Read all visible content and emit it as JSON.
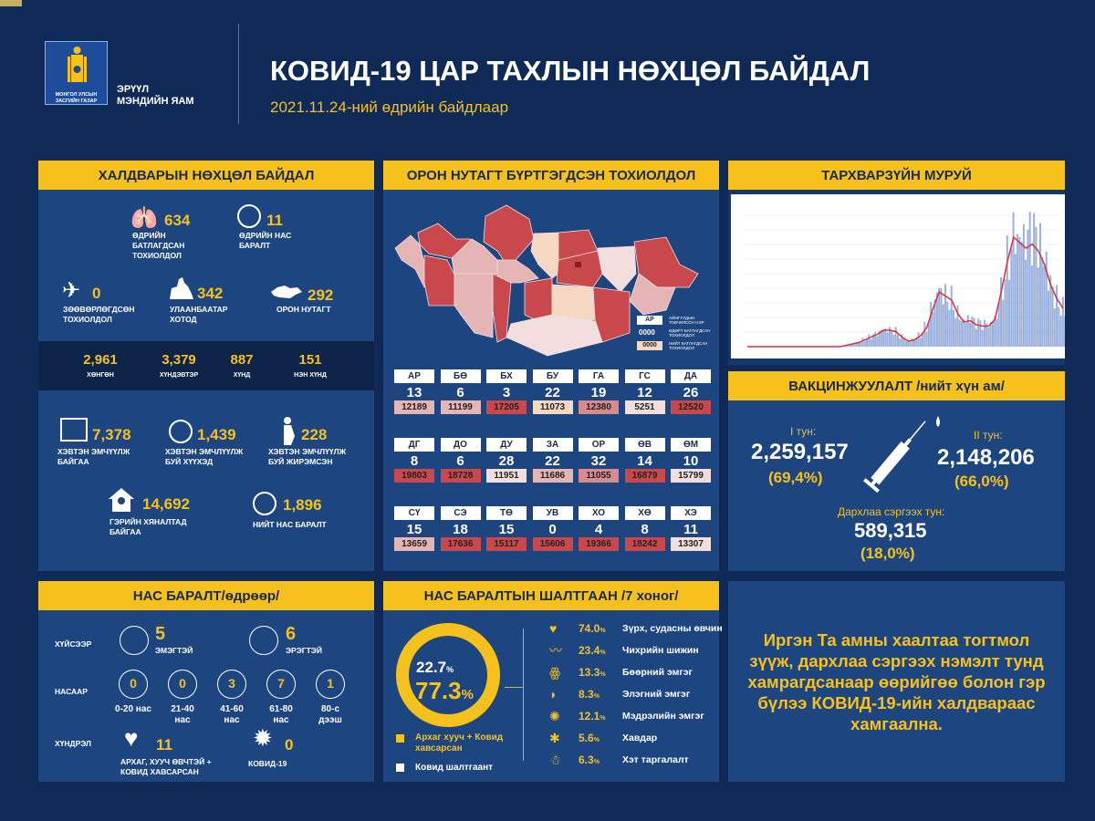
{
  "header": {
    "logo_text": "МОНГОЛ УЛСЫН ЗАСГИЙН ГАЗАР",
    "ministry": "ЭРҮҮЛ\nМЭНДИЙН ЯАМ",
    "title": "КОВИД-19 ЦАР ТАХЛЫН НӨХЦӨЛ БАЙДАЛ",
    "subtitle": "2021.11.24-ний өдрийн байдлаар"
  },
  "infection": {
    "title": "ХАЛДВАРЫН НӨХЦӨЛ БАЙДАЛ",
    "daily_cases": {
      "value": "634",
      "label": "ӨДРИЙН\nБАТЛАГДСАН\nТОХИОЛДОЛ",
      "icon": "lungs-icon"
    },
    "daily_deaths": {
      "value": "11",
      "label": "ӨДРИЙН НАС\nБАРАЛТ",
      "icon": "person-minus-icon"
    },
    "imported": {
      "value": "0",
      "label": "ЗӨӨВӨРЛӨГДСӨН\nТОХИОЛДОЛ",
      "icon": "airplane-icon"
    },
    "ulaanbaatar": {
      "value": "342",
      "label": "УЛААНБААТАР\nХОТОД",
      "icon": "statue-icon"
    },
    "rural": {
      "value": "292",
      "label": "ОРОН НУТАГТ",
      "icon": "mongolia-map-icon"
    },
    "severity": [
      {
        "value": "2,961",
        "label": "ХӨНГӨН"
      },
      {
        "value": "3,379",
        "label": "ХҮНДЭВТЭР"
      },
      {
        "value": "887",
        "label": "ХҮНД"
      },
      {
        "value": "151",
        "label": "НЭН ХҮНД"
      }
    ],
    "hospitalized": {
      "value": "7,378",
      "label": "ХЭВТЭН ЭМЧҮҮЛЖ\nБАЙГАА",
      "icon": "hospital-icon"
    },
    "children": {
      "value": "1,439",
      "label": "ХЭВТЭН ЭМЧЛҮҮЛЖ\nБУЙ ХҮҮХЭД",
      "icon": "baby-icon"
    },
    "pregnant": {
      "value": "228",
      "label": "ХЭВТЭН ЭМЧЛҮҮЛЖ\nБУЙ ЖИРЭМСЭН",
      "icon": "pregnant-icon"
    },
    "home": {
      "value": "14,692",
      "label": "ГЭРИЙН ХЯНАЛТАД\nБАЙГАА",
      "icon": "home-icon"
    },
    "total_deaths": {
      "value": "1,896",
      "label": "НИЙТ НАС БАРАЛТ",
      "icon": "person-minus-icon"
    }
  },
  "regional": {
    "title": "ОРОН НУТАГТ БҮРТГЭГДСЭН ТОХИОЛДОЛ",
    "legend": [
      {
        "sample": "АР",
        "label": "АЙМГУУДЫН ТОВЧИЛСОН НЭР"
      },
      {
        "sample": "0000",
        "label": "ӨДӨРТ БАТЛАГДСАН ТОХИОЛДОЛ"
      },
      {
        "sample": "0000",
        "label": "НИЙТ БАТЛАГДСАН ТОХИОЛДОЛ"
      }
    ],
    "colors": {
      "dark": "#c8484b",
      "medium": "#d68c8e",
      "light": "#e5b4b5",
      "pale": "#f3dede",
      "peach": "#f5d8c2"
    },
    "provinces": [
      {
        "code": "АР",
        "daily": "13",
        "total": "12189",
        "shade": "light"
      },
      {
        "code": "БӨ",
        "daily": "6",
        "total": "11199",
        "shade": "light"
      },
      {
        "code": "БХ",
        "daily": "3",
        "total": "17205",
        "shade": "dark"
      },
      {
        "code": "БУ",
        "daily": "22",
        "total": "11073",
        "shade": "peach"
      },
      {
        "code": "ГА",
        "daily": "19",
        "total": "12380",
        "shade": "medium"
      },
      {
        "code": "ГС",
        "daily": "12",
        "total": "5251",
        "shade": "pale"
      },
      {
        "code": "ДА",
        "daily": "26",
        "total": "12520",
        "shade": "dark"
      },
      {
        "code": "ДГ",
        "daily": "8",
        "total": "19803",
        "shade": "dark"
      },
      {
        "code": "ДО",
        "daily": "6",
        "total": "18728",
        "shade": "dark"
      },
      {
        "code": "ДУ",
        "daily": "28",
        "total": "11951",
        "shade": "pale"
      },
      {
        "code": "ЗА",
        "daily": "22",
        "total": "11686",
        "shade": "light"
      },
      {
        "code": "ОР",
        "daily": "32",
        "total": "11055",
        "shade": "medium"
      },
      {
        "code": "ӨВ",
        "daily": "14",
        "total": "16879",
        "shade": "dark"
      },
      {
        "code": "ӨМ",
        "daily": "10",
        "total": "15799",
        "shade": "pale"
      },
      {
        "code": "СҮ",
        "daily": "15",
        "total": "13659",
        "shade": "light"
      },
      {
        "code": "СЭ",
        "daily": "18",
        "total": "17636",
        "shade": "dark"
      },
      {
        "code": "ТӨ",
        "daily": "15",
        "total": "15117",
        "shade": "dark"
      },
      {
        "code": "УВ",
        "daily": "0",
        "total": "15606",
        "shade": "dark"
      },
      {
        "code": "ХО",
        "daily": "4",
        "total": "19366",
        "shade": "dark"
      },
      {
        "code": "ХӨ",
        "daily": "8",
        "total": "18242",
        "shade": "dark"
      },
      {
        "code": "ХЭ",
        "daily": "11",
        "total": "13307",
        "shade": "pale"
      }
    ]
  },
  "curve": {
    "title": "ТАРХВАРЗҮЙН МУРУЙ"
  },
  "chart_data": {
    "type": "bar+line",
    "bar_color": "#9ab0dc",
    "line_color": "#d9303a",
    "grid": true,
    "values": [
      0,
      0,
      0,
      0,
      0,
      0,
      0,
      0,
      0,
      0,
      0,
      0,
      0,
      0,
      0,
      0,
      1,
      2,
      3,
      5,
      7,
      9,
      12,
      12,
      11,
      7,
      4,
      5,
      8,
      14,
      28,
      40,
      37,
      34,
      24,
      18,
      19,
      16,
      15,
      15,
      20,
      40,
      62,
      80,
      76,
      72,
      75,
      70,
      60,
      45,
      35,
      28
    ]
  },
  "vaccination": {
    "title": "ВАКЦИНЖУУЛАЛТ /нийт хүн ам/",
    "dose1_label": "I тун:",
    "dose1_value": "2,259,157",
    "dose1_pct": "(69,4%)",
    "dose2_label": "II тун:",
    "dose2_value": "2,148,206",
    "dose2_pct": "(66,0%)",
    "booster_label": "Дархлаа сэргээх тун:",
    "booster_value": "589,315",
    "booster_pct": "(18,0%)",
    "icon": "syringe-icon"
  },
  "deaths": {
    "title": "НАС БАРАЛТ/өдрөөр/",
    "sex_label": "ХҮЙСЭЭР",
    "female_value": "5",
    "female_label": "ЭМЭГТЭЙ",
    "male_value": "6",
    "male_label": "ЭРЭГТЭЙ",
    "age_label": "НАСААР",
    "ages": [
      {
        "value": "0",
        "label": "0-20 нас"
      },
      {
        "value": "0",
        "label": "21-40\nнас"
      },
      {
        "value": "3",
        "label": "41-60\nнас"
      },
      {
        "value": "7",
        "label": "61-80\nнас"
      },
      {
        "value": "1",
        "label": "80-с\nдээш"
      }
    ],
    "complication_label": "ХҮНДРЭЛ",
    "chronic_value": "11",
    "chronic_label": "АРХАГ, ХУУЧ ӨВЧТЭЙ +\nКОВИД ХАВСАРСАН",
    "covid_value": "0",
    "covid_label": "КОВИД-19"
  },
  "causes": {
    "title": "НАС БАРАЛТЫН ШАЛТГААН /7 хоног/",
    "covid_only_pct": "22.7",
    "comorbid_pct": "77.3",
    "pct_sign": "%",
    "legend_comorbid": "Архаг хууч + Ковид\nхавсарсан",
    "legend_covid": "Ковид шалтгаант",
    "items": [
      {
        "pct": "74.0",
        "label": "Зүрх, судасны өвчин",
        "icon": "heart-organ-icon"
      },
      {
        "pct": "23.4",
        "label": "Чихрийн шижин",
        "icon": "pancreas-icon"
      },
      {
        "pct": "13.3",
        "label": "Бөөрний эмгэг",
        "icon": "kidney-icon"
      },
      {
        "pct": "8.3",
        "label": "Элэгний эмгэг",
        "icon": "liver-icon"
      },
      {
        "pct": "12.1",
        "label": "Мэдрэлийн эмгэг",
        "icon": "brain-icon"
      },
      {
        "pct": "5.6",
        "label": "Хавдар",
        "icon": "tumor-icon"
      },
      {
        "pct": "6.3",
        "label": "Хэт таргалалт",
        "icon": "obesity-icon"
      }
    ]
  },
  "message": "Иргэн Та амны хаалтаа тогтмол зүүж, дархлаа сэргээх нэмэлт тунд хамрагдсанаар өөрийгөө болон гэр бүлээ КОВИД-19-ийн халдвараас хамгаална."
}
